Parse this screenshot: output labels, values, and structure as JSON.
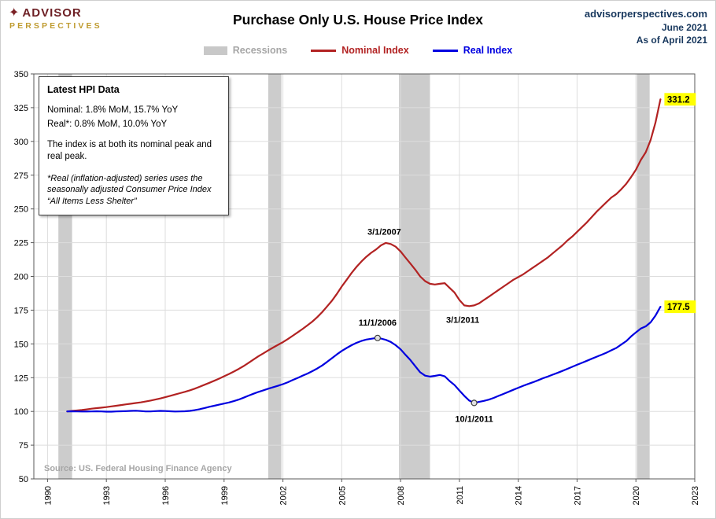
{
  "header": {
    "logo": {
      "line1": "ADVISOR",
      "line2": "PERSPECTIVES"
    },
    "title": "Purchase Only U.S. House Price Index",
    "site": "advisorperspectives.com",
    "month": "June 2021",
    "as_of": "As of April 2021"
  },
  "legend": {
    "items": [
      {
        "label": "Recessions",
        "type": "band",
        "color": "#c8c8c8",
        "text_color": "#a6a6a6"
      },
      {
        "label": "Nominal Index",
        "type": "line",
        "color": "#b22222",
        "text_color": "#b22222"
      },
      {
        "label": "Real Index",
        "type": "line",
        "color": "#0000e0",
        "text_color": "#0000e0"
      }
    ]
  },
  "annotation_box": {
    "title": "Latest HPI Data",
    "nominal_line": "Nominal:  1.8% MoM, 15.7% YoY",
    "real_line": "Real*:  0.8% MoM, 10.0% YoY",
    "body": "The index is at both its nominal peak and real peak.",
    "footnote": "*Real (inflation-adjusted) series uses the seasonally adjusted Consumer Price Index “All Items Less Shelter”"
  },
  "source": "Source: US. Federal Housing Finance Agency",
  "chart_data": {
    "type": "line",
    "title": "Purchase Only U.S. House Price Index",
    "x_start": 1991,
    "x_step": 0.25,
    "x_axis": {
      "range": [
        1989.3,
        2023.0
      ],
      "ticks": [
        1990,
        1993,
        1996,
        1999,
        2002,
        2005,
        2008,
        2011,
        2014,
        2017,
        2020,
        2023
      ]
    },
    "y_axis": {
      "range": [
        50,
        350
      ],
      "ticks": [
        50,
        75,
        100,
        125,
        150,
        175,
        200,
        225,
        250,
        275,
        300,
        325,
        350
      ]
    },
    "grid": true,
    "recessions": [
      [
        1990.55,
        1991.25
      ],
      [
        2001.25,
        2001.92
      ],
      [
        2007.92,
        2009.5
      ],
      [
        2020.05,
        2020.7
      ]
    ],
    "colors": {
      "recession": "#cccccc",
      "grid": "#dddddd",
      "border": "#595959",
      "end_label_bg": "#ffff00",
      "axis_text": "#000000",
      "source_text": "#a6a6a6"
    },
    "series": [
      {
        "name": "Nominal Index",
        "color": "#b22222",
        "end_label": "331.2",
        "values": [
          100,
          100.4,
          100.7,
          101,
          101.5,
          102,
          102.4,
          102.8,
          103.2,
          103.7,
          104.2,
          104.7,
          105.2,
          105.7,
          106.2,
          106.7,
          107.3,
          108,
          108.8,
          109.6,
          110.5,
          111.5,
          112.5,
          113.5,
          114.5,
          115.6,
          116.8,
          118.2,
          119.7,
          121.2,
          122.7,
          124.3,
          126,
          127.7,
          129.5,
          131.5,
          133.6,
          136,
          138.4,
          140.8,
          143,
          145.2,
          147.3,
          149.3,
          151.3,
          153.6,
          156,
          158.5,
          161,
          163.7,
          166.5,
          169.8,
          173.5,
          177.7,
          182,
          187,
          192.5,
          197.5,
          202.5,
          207,
          211,
          214.5,
          217.5,
          220,
          223,
          224.8,
          224,
          222,
          218.5,
          214,
          209.5,
          205,
          200,
          196.5,
          194.5,
          194,
          194.5,
          195,
          191.5,
          188,
          182.5,
          178.5,
          178,
          178.5,
          180,
          182.5,
          185,
          187.5,
          190,
          192.5,
          195,
          197.5,
          199.5,
          201.5,
          204,
          206.5,
          209,
          211.5,
          214,
          217,
          220,
          223,
          226.5,
          229.5,
          233,
          236.5,
          240,
          244,
          248,
          251.5,
          255,
          258.5,
          261,
          264.5,
          268.5,
          273.5,
          279,
          286.3,
          292,
          301,
          314,
          331.2
        ]
      },
      {
        "name": "Real Index",
        "color": "#0000e0",
        "end_label": "177.5",
        "values": [
          100,
          100.1,
          100,
          99.9,
          99.9,
          100,
          100.1,
          100,
          99.8,
          99.8,
          100,
          100.1,
          100.2,
          100.4,
          100.5,
          100.3,
          100,
          100,
          100.2,
          100.4,
          100.3,
          100.1,
          99.9,
          100,
          100.1,
          100.4,
          100.9,
          101.6,
          102.5,
          103.4,
          104.2,
          105,
          105.8,
          106.6,
          107.6,
          108.8,
          110.2,
          111.7,
          113.1,
          114.4,
          115.6,
          116.8,
          117.9,
          119,
          120.2,
          121.6,
          123.2,
          124.8,
          126.4,
          128,
          129.8,
          131.8,
          134,
          136.6,
          139.4,
          142.2,
          144.8,
          147,
          149,
          150.8,
          152.2,
          153.2,
          153.8,
          154.4,
          154,
          153,
          151.5,
          149,
          146,
          142,
          138,
          133.5,
          129,
          126.5,
          125.8,
          126.3,
          127,
          126,
          122.5,
          119.5,
          115.5,
          111.5,
          108,
          106.3,
          107,
          107.8,
          108.7,
          110,
          111.5,
          113,
          114.5,
          116,
          117.5,
          119,
          120.3,
          121.6,
          123,
          124.5,
          125.8,
          127.2,
          128.5,
          130,
          131.5,
          133,
          134.5,
          136,
          137.5,
          139,
          140.5,
          142,
          143.5,
          145.3,
          147,
          149.5,
          152,
          155.5,
          158.5,
          161.4,
          163,
          166,
          171,
          177.5
        ]
      }
    ],
    "annotations": [
      {
        "text": "3/1/2007",
        "x": 2007.17,
        "y": 225.0,
        "dy": -10,
        "marker": false
      },
      {
        "text": "11/1/2006",
        "x": 2006.83,
        "y": 154.4,
        "dy": -16,
        "marker": true
      },
      {
        "text": "3/1/2011",
        "x": 2011.17,
        "y": 178.0,
        "dy": 21,
        "marker": false
      },
      {
        "text": "10/1/2011",
        "x": 2011.75,
        "y": 106.3,
        "dy": 24,
        "marker": true
      }
    ]
  }
}
